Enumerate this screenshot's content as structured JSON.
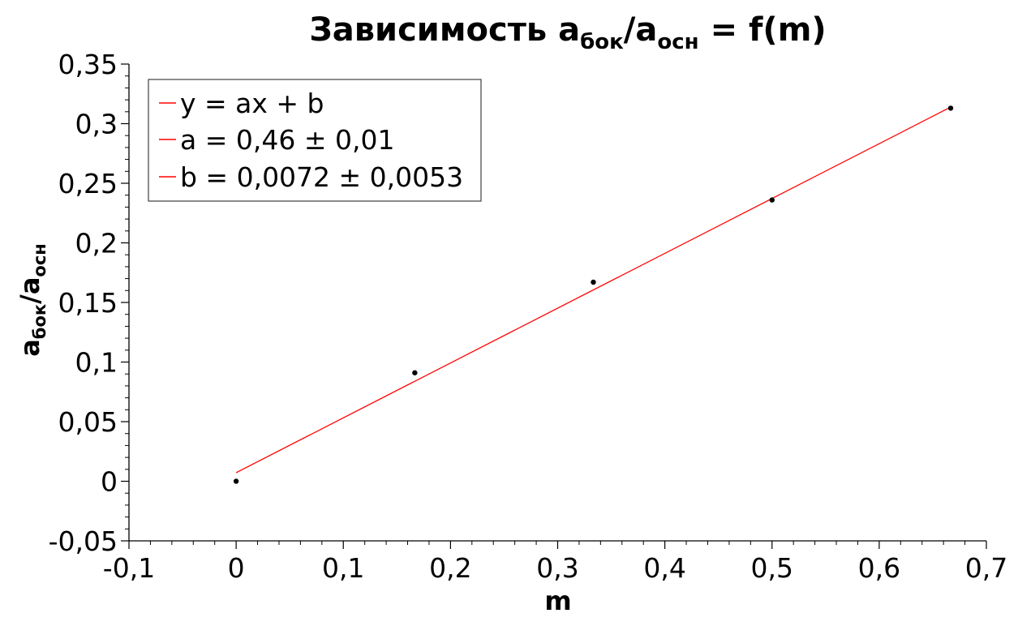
{
  "chart_data": {
    "type": "scatter",
    "title": {
      "main": "Зависимость a",
      "sub1": "бок",
      "mid": "/a",
      "sub2": "осн",
      "tail": " = f(m)"
    },
    "xlabel": "m",
    "ylabel": {
      "a1": "a",
      "sub1": "бок",
      "slash": "/a",
      "sub2": "осн"
    },
    "xlim": [
      -0.1,
      0.7
    ],
    "ylim": [
      -0.05,
      0.35
    ],
    "x_ticks": [
      -0.1,
      0,
      0.1,
      0.2,
      0.3,
      0.4,
      0.5,
      0.6,
      0.7
    ],
    "x_tick_labels": [
      "-0,1",
      "0",
      "0,1",
      "0,2",
      "0,3",
      "0,4",
      "0,5",
      "0,6",
      "0,7"
    ],
    "y_ticks": [
      -0.05,
      0,
      0.05,
      0.1,
      0.15,
      0.2,
      0.25,
      0.3,
      0.35
    ],
    "y_tick_labels": [
      "-0,05",
      "0",
      "0,05",
      "0,1",
      "0,15",
      "0,2",
      "0,25",
      "0,3",
      "0,35"
    ],
    "points": {
      "x": [
        0,
        0.1667,
        0.3333,
        0.5,
        0.6667
      ],
      "y": [
        0.0,
        0.091,
        0.167,
        0.236,
        0.313
      ]
    },
    "fit": {
      "a": 0.46,
      "b": 0.0072,
      "x_range": [
        0,
        0.6667
      ]
    },
    "legend": [
      "y = ax + b",
      "a = 0,46 ± 0,01",
      "b = 0,0072 ± 0,0053"
    ],
    "legend_position": "top-left",
    "grid": false,
    "colors": {
      "fit_line": "#ff0000",
      "points": "#000000",
      "axis": "#000000"
    }
  }
}
